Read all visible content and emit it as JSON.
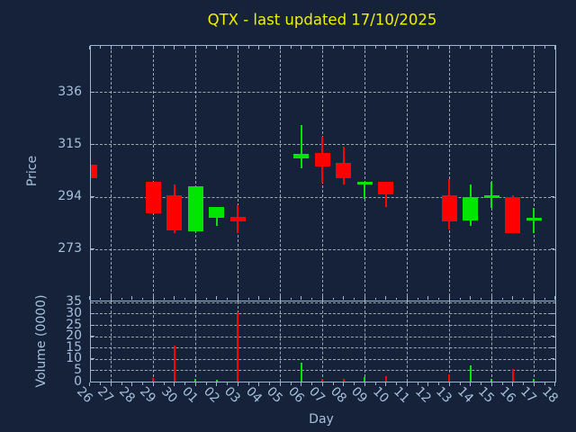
{
  "colors": {
    "background": "#15223A",
    "frame": "#9FB6D0",
    "grid": "#B6BEC6",
    "text": "#A6C0DB",
    "title": "#F2F200",
    "up": "#00E600",
    "down": "#FF0000"
  },
  "chart_data": [
    {
      "type": "candlestick",
      "title": "QTX - last updated 17/10/2025",
      "xlabel": "Day",
      "ylabel": "Price",
      "categories": [
        "26",
        "27",
        "28",
        "29",
        "30",
        "01",
        "02",
        "03",
        "04",
        "05",
        "06",
        "07",
        "08",
        "09",
        "10",
        "11",
        "12",
        "13",
        "14",
        "15",
        "16",
        "17",
        "18"
      ],
      "y_ticks": [
        273,
        294,
        315,
        336
      ],
      "ylim": [
        252.4,
        354.7
      ],
      "grid": true,
      "x_gridline_offset": 1,
      "x_gridline_every": 2,
      "series": [
        {
          "day": "26",
          "open": 307,
          "high": 307,
          "low": 301.5,
          "close": 301.5,
          "direction": "down"
        },
        {
          "day": "29",
          "open": 300,
          "high": 300,
          "low": 287.5,
          "close": 287.5,
          "direction": "down"
        },
        {
          "day": "30",
          "open": 294.5,
          "high": 299,
          "low": 279.5,
          "close": 280.5,
          "direction": "down"
        },
        {
          "day": "01",
          "open": 280,
          "high": 298,
          "low": 280,
          "close": 298,
          "direction": "up"
        },
        {
          "day": "02",
          "open": 285.5,
          "high": 290,
          "low": 282.5,
          "close": 290,
          "direction": "up"
        },
        {
          "day": "03",
          "open": 286,
          "high": 290.5,
          "low": 279.5,
          "close": 284,
          "direction": "down"
        },
        {
          "day": "06",
          "open": 309.5,
          "high": 322.5,
          "low": 305.5,
          "close": 311,
          "direction": "up"
        },
        {
          "day": "07",
          "open": 311.5,
          "high": 318,
          "low": 299.5,
          "close": 306,
          "direction": "down"
        },
        {
          "day": "08",
          "open": 307.5,
          "high": 314,
          "low": 299,
          "close": 301.5,
          "direction": "down"
        },
        {
          "day": "09",
          "open": 299,
          "high": 300,
          "low": 293,
          "close": 300,
          "direction": "up"
        },
        {
          "day": "10",
          "open": 300,
          "high": 300,
          "low": 290,
          "close": 295,
          "direction": "down"
        },
        {
          "day": "13",
          "open": 294.5,
          "high": 301,
          "low": 281,
          "close": 284,
          "direction": "down"
        },
        {
          "day": "14",
          "open": 284.5,
          "high": 299,
          "low": 282.5,
          "close": 294,
          "direction": "up"
        },
        {
          "day": "15",
          "open": 293.5,
          "high": 300,
          "low": 289.5,
          "close": 294.5,
          "direction": "up"
        },
        {
          "day": "16",
          "open": 294,
          "high": 294.5,
          "low": 279.5,
          "close": 279.5,
          "direction": "down"
        },
        {
          "day": "17",
          "open": 284.5,
          "high": 289.5,
          "low": 279.5,
          "close": 285.5,
          "direction": "up"
        }
      ]
    },
    {
      "type": "bar",
      "ylabel": "Volume (0000)",
      "y_ticks": [
        0,
        5,
        10,
        15,
        20,
        25,
        30,
        35
      ],
      "ylim": [
        0,
        35.7
      ],
      "grid": true,
      "values": [
        {
          "day": "26",
          "value": 0,
          "direction": "down"
        },
        {
          "day": "29",
          "value": 1.5,
          "direction": "down"
        },
        {
          "day": "30",
          "value": 16,
          "direction": "down"
        },
        {
          "day": "01",
          "value": 1.2,
          "direction": "up"
        },
        {
          "day": "02",
          "value": 0.8,
          "direction": "up"
        },
        {
          "day": "03",
          "value": 30.5,
          "direction": "down"
        },
        {
          "day": "06",
          "value": 8.5,
          "direction": "up"
        },
        {
          "day": "07",
          "value": 1.2,
          "direction": "down"
        },
        {
          "day": "08",
          "value": 1,
          "direction": "down"
        },
        {
          "day": "09",
          "value": 2,
          "direction": "up"
        },
        {
          "day": "10",
          "value": 2.4,
          "direction": "down"
        },
        {
          "day": "13",
          "value": 3.2,
          "direction": "down"
        },
        {
          "day": "14",
          "value": 7.2,
          "direction": "up"
        },
        {
          "day": "15",
          "value": 1.3,
          "direction": "up"
        },
        {
          "day": "16",
          "value": 5.5,
          "direction": "down"
        },
        {
          "day": "17",
          "value": 1,
          "direction": "up"
        }
      ]
    }
  ]
}
